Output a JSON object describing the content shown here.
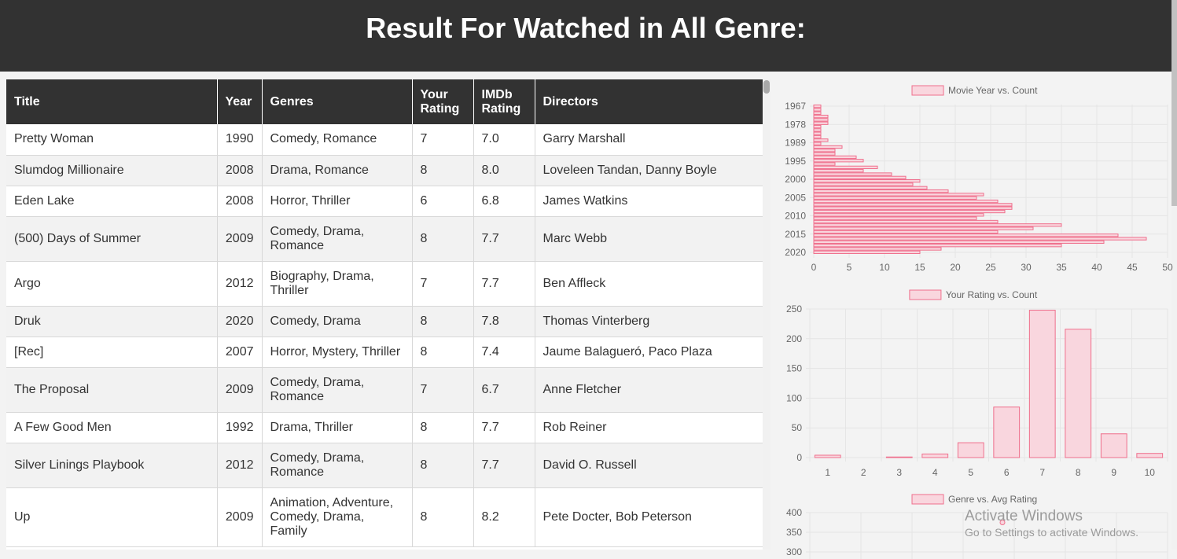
{
  "page": {
    "title": "Result For Watched in All Genre:"
  },
  "table": {
    "columns": [
      "Title",
      "Year",
      "Genres",
      "Your Rating",
      "IMDb Rating",
      "Directors"
    ],
    "rows": [
      {
        "title": "Pretty Woman",
        "year": "1990",
        "genres": "Comedy, Romance",
        "your_rating": "7",
        "imdb_rating": "7.0",
        "directors": "Garry Marshall"
      },
      {
        "title": "Slumdog Millionaire",
        "year": "2008",
        "genres": "Drama, Romance",
        "your_rating": "8",
        "imdb_rating": "8.0",
        "directors": "Loveleen Tandan, Danny Boyle"
      },
      {
        "title": "Eden Lake",
        "year": "2008",
        "genres": "Horror, Thriller",
        "your_rating": "6",
        "imdb_rating": "6.8",
        "directors": "James Watkins"
      },
      {
        "title": "(500) Days of Summer",
        "year": "2009",
        "genres": "Comedy, Drama, Romance",
        "your_rating": "8",
        "imdb_rating": "7.7",
        "directors": "Marc Webb"
      },
      {
        "title": "Argo",
        "year": "2012",
        "genres": "Biography, Drama, Thriller",
        "your_rating": "7",
        "imdb_rating": "7.7",
        "directors": "Ben Affleck"
      },
      {
        "title": "Druk",
        "year": "2020",
        "genres": "Comedy, Drama",
        "your_rating": "8",
        "imdb_rating": "7.8",
        "directors": "Thomas Vinterberg"
      },
      {
        "title": "[Rec]",
        "year": "2007",
        "genres": "Horror, Mystery, Thriller",
        "your_rating": "8",
        "imdb_rating": "7.4",
        "directors": "Jaume Balagueró, Paco Plaza"
      },
      {
        "title": "The Proposal",
        "year": "2009",
        "genres": "Comedy, Drama, Romance",
        "your_rating": "7",
        "imdb_rating": "6.7",
        "directors": "Anne Fletcher"
      },
      {
        "title": "A Few Good Men",
        "year": "1992",
        "genres": "Drama, Thriller",
        "your_rating": "8",
        "imdb_rating": "7.7",
        "directors": "Rob Reiner"
      },
      {
        "title": "Silver Linings Playbook",
        "year": "2012",
        "genres": "Comedy, Drama, Romance",
        "your_rating": "8",
        "imdb_rating": "7.7",
        "directors": "David O. Russell"
      },
      {
        "title": "Up",
        "year": "2009",
        "genres": "Animation, Adventure, Comedy, Drama, Family",
        "your_rating": "8",
        "imdb_rating": "8.2",
        "directors": "Pete Docter, Bob Peterson"
      }
    ]
  },
  "colors": {
    "header_bg": "#323232",
    "bar_fill": "#f9d6de",
    "bar_stroke": "#ef6f8c",
    "grid": "#e5e5e5"
  },
  "chart_data": [
    {
      "type": "bar",
      "orientation": "horizontal",
      "legend": "Movie Year vs. Count",
      "y_tick_labels": [
        "1967",
        "1978",
        "1989",
        "1995",
        "2000",
        "2005",
        "2010",
        "2015",
        "2020"
      ],
      "x_ticks": [
        0,
        5,
        10,
        15,
        20,
        25,
        30,
        35,
        40,
        45,
        50
      ],
      "xlim": [
        0,
        50
      ],
      "grid": true,
      "series": [
        {
          "values": [
            1,
            1,
            1,
            2,
            2,
            2,
            1,
            1,
            1,
            1,
            2,
            1,
            4,
            3,
            3,
            6,
            7,
            3,
            9,
            7,
            11,
            13,
            15,
            14,
            16,
            19,
            24,
            23,
            26,
            28,
            28,
            27,
            24,
            23,
            26,
            35,
            31,
            26,
            43,
            47,
            41,
            35,
            18,
            15
          ]
        }
      ]
    },
    {
      "type": "bar",
      "legend": "Your Rating vs. Count",
      "categories": [
        "1",
        "2",
        "3",
        "4",
        "5",
        "6",
        "7",
        "8",
        "9",
        "10"
      ],
      "y_ticks": [
        0,
        50,
        100,
        150,
        200,
        250
      ],
      "ylim": [
        0,
        250
      ],
      "grid": true,
      "series": [
        {
          "values": [
            4,
            0,
            1,
            6,
            25,
            85,
            248,
            216,
            40,
            7
          ]
        }
      ]
    },
    {
      "type": "bar",
      "legend": "Genre vs. Avg Rating",
      "y_ticks": [
        400,
        350,
        300
      ],
      "grid": true,
      "series": [
        {
          "values": [
            375
          ]
        }
      ]
    }
  ],
  "watermark": {
    "line1": "Activate Windows",
    "line2": "Go to Settings to activate Windows."
  }
}
